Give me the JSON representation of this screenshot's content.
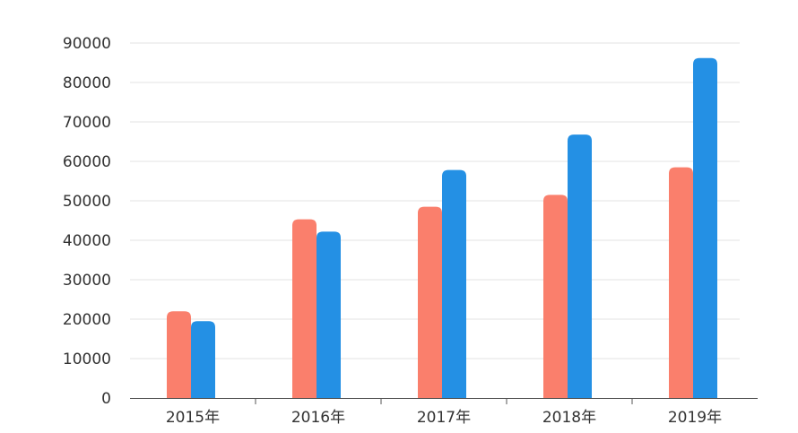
{
  "chart_data": {
    "type": "bar",
    "categories": [
      "2015年",
      "2016年",
      "2017年",
      "2018年",
      "2019年"
    ],
    "series": [
      {
        "color": "#fa7f6c",
        "values": [
          22000,
          45300,
          48500,
          51500,
          58500
        ]
      },
      {
        "color": "#2490e4",
        "values": [
          19500,
          42200,
          57800,
          66800,
          86200
        ]
      }
    ],
    "ylim": [
      0,
      90000
    ],
    "yticks": [
      0,
      10000,
      20000,
      30000,
      40000,
      50000,
      60000,
      70000,
      80000,
      90000
    ],
    "ytick_labels": [
      "0",
      "10000",
      "20000",
      "30000",
      "40000",
      "50000",
      "60000",
      "70000",
      "80000",
      "90000"
    ],
    "grid": true,
    "legend": "none",
    "colors": {
      "grid": "#e3e3e3",
      "axis": "#555555",
      "text": "#333333"
    }
  }
}
